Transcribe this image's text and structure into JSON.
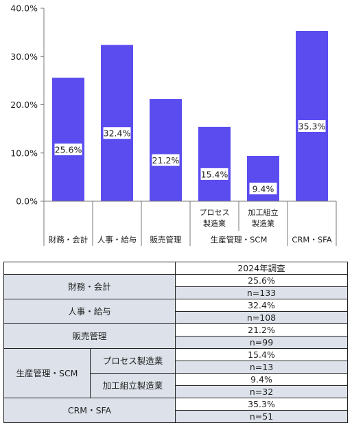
{
  "chart_data": {
    "type": "bar",
    "categories": [
      "財務・会計",
      "人事・給与",
      "販売管理",
      "プロセス製造業",
      "加工組立製造業",
      "CRM・SFA"
    ],
    "values": [
      25.6,
      32.4,
      21.2,
      15.4,
      9.4,
      35.3
    ],
    "value_labels": [
      "25.6%",
      "32.4%",
      "21.2%",
      "15.4%",
      "9.4%",
      "35.3%"
    ],
    "ylim": [
      0,
      40
    ],
    "y_ticks": [
      "0.0%",
      "10.0%",
      "20.0%",
      "30.0%",
      "40.0%"
    ],
    "x_axis": {
      "top_level": [
        "",
        "",
        "",
        "プロセス\n製造業",
        "加工組立\n製造業",
        ""
      ],
      "bottom_level": [
        "財務・会計",
        "人事・給与",
        "販売管理",
        "生産管理・SCM",
        "CRM・SFA"
      ]
    },
    "bar_color": "#5b4cf0",
    "grid": false,
    "legend": "none"
  },
  "table": {
    "header": "2024年調査",
    "rows": [
      {
        "label": "財務・会計",
        "value": "25.6%",
        "n": "n=133"
      },
      {
        "label": "人事・給与",
        "value": "32.4%",
        "n": "n=108"
      },
      {
        "label": "販売管理",
        "value": "21.2%",
        "n": "n=99"
      },
      {
        "group": "生産管理・SCM",
        "label": "プロセス製造業",
        "value": "15.4%",
        "n": "n=13"
      },
      {
        "group": "生産管理・SCM",
        "label": "加工組立製造業",
        "value": "9.4%",
        "n": "n=32"
      },
      {
        "label": "CRM・SFA",
        "value": "35.3%",
        "n": "n=51"
      }
    ]
  },
  "colors": {
    "bar": "#5b4cf0",
    "table_shade": "#dde2ea"
  }
}
